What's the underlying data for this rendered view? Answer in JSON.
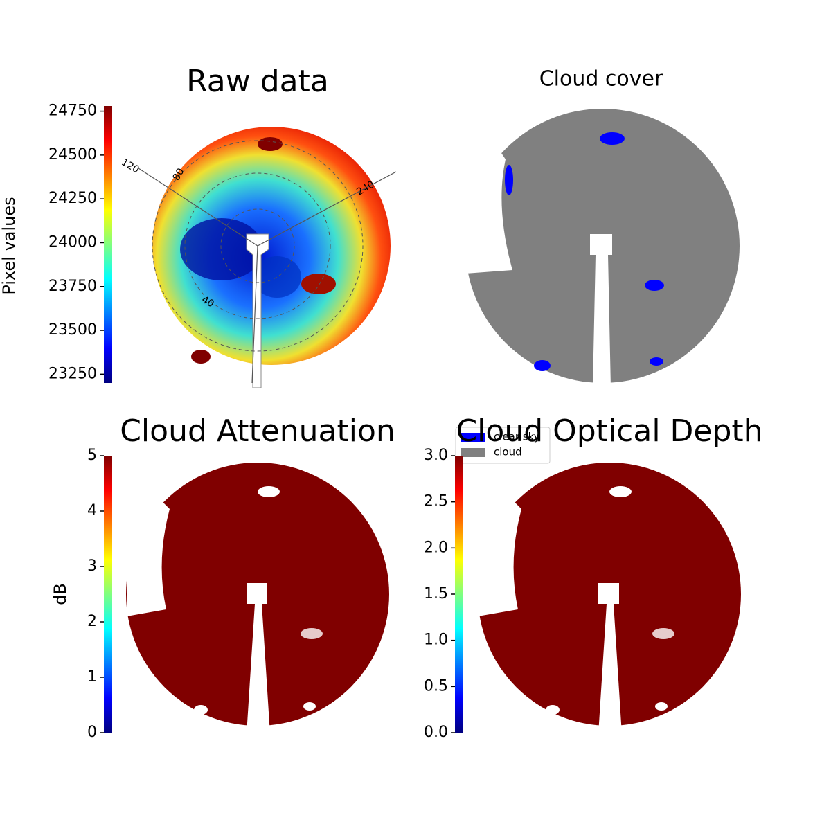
{
  "chart_data": [
    {
      "type": "image",
      "title": "Raw data",
      "colormap": "jet",
      "colorbar_label": "Pixel values",
      "clim": [
        23200,
        24780
      ],
      "cticks": [
        23250,
        23500,
        23750,
        24000,
        24250,
        24500,
        24750
      ],
      "polar_labels": [
        "120",
        "80",
        "240",
        "40"
      ]
    },
    {
      "type": "image",
      "title": "Cloud cover",
      "series": [
        {
          "name": "clear sky",
          "color": "#0000ff"
        },
        {
          "name": "cloud",
          "color": "#808080"
        }
      ]
    },
    {
      "type": "image",
      "title": "Cloud Attenuation",
      "colormap": "jet",
      "colorbar_label": "dB",
      "clim": [
        0,
        5
      ],
      "cticks": [
        0,
        1,
        2,
        3,
        4,
        5
      ]
    },
    {
      "type": "image",
      "title": "Cloud Optical Depth",
      "colormap": "jet",
      "clim": [
        0,
        3
      ],
      "cticks": [
        {
          "value": 0,
          "label": "0.0"
        },
        0.5,
        {
          "value": 1,
          "label": "1.0"
        },
        1.5,
        {
          "value": 2,
          "label": "2.0"
        },
        2.5,
        {
          "value": 3,
          "label": "3.0"
        }
      ]
    }
  ]
}
